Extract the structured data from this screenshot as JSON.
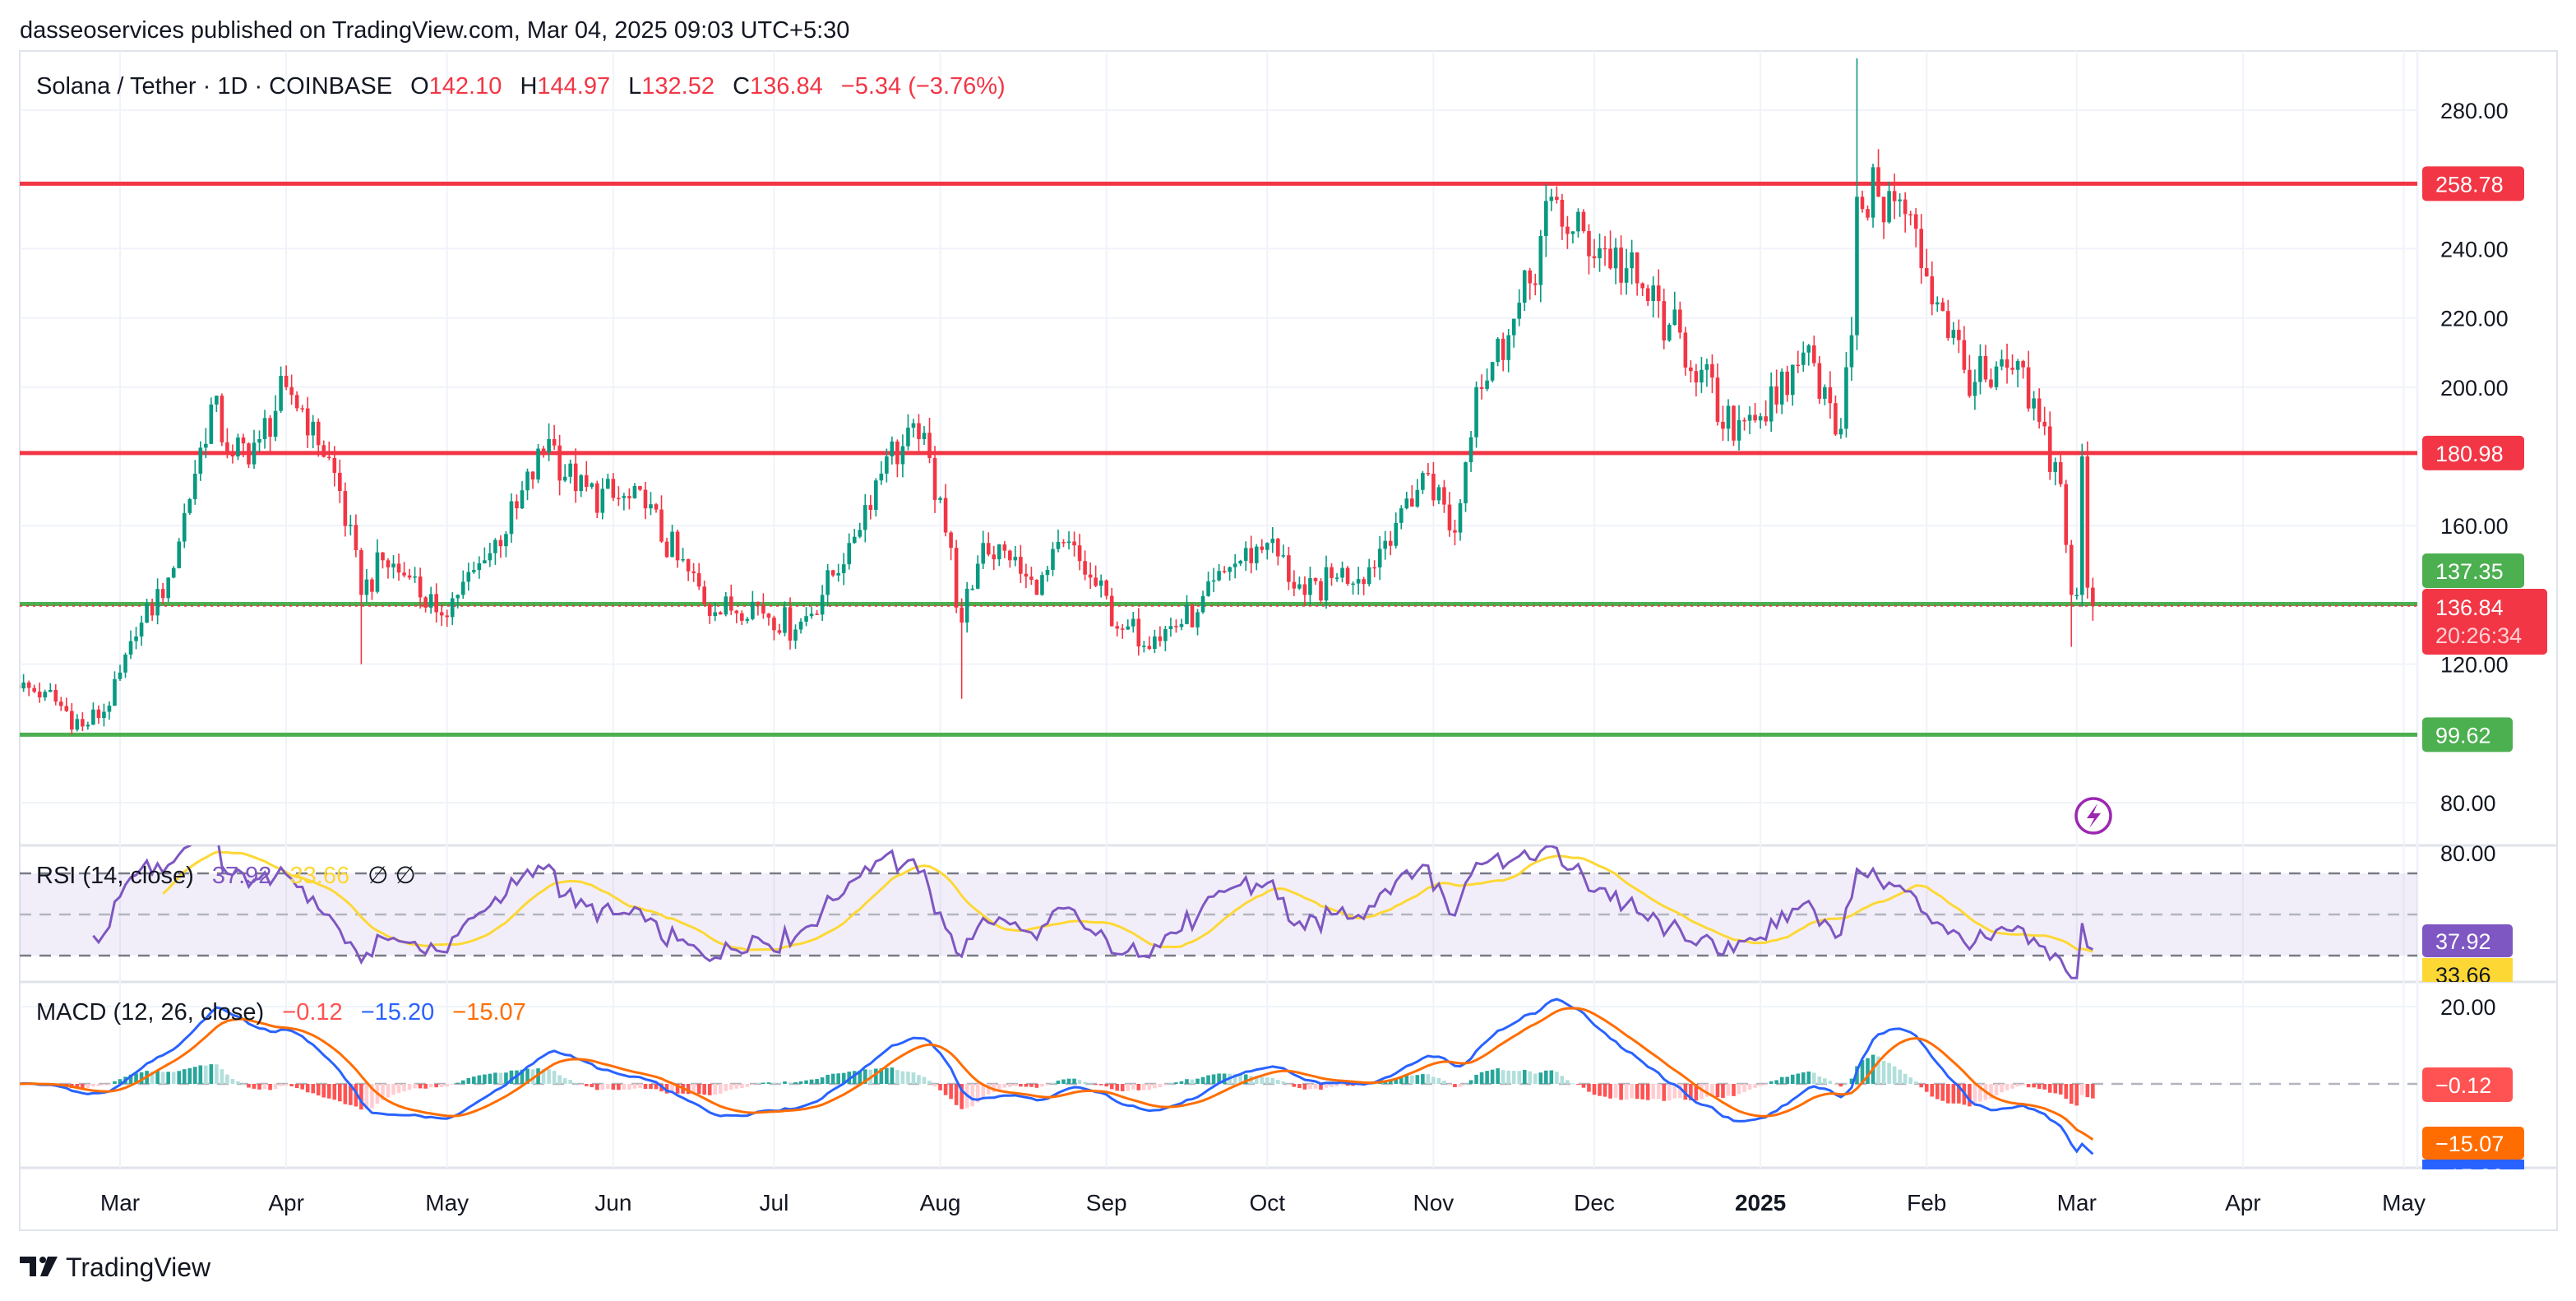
{
  "header": {
    "published": "dasseoservices published on TradingView.com, Mar 04, 2025 09:03 UTC+5:30"
  },
  "legend": {
    "symbol": "Solana / Tether · 1D · COINBASE",
    "o_label": "O",
    "o": "142.10",
    "h_label": "H",
    "h": "144.97",
    "l_label": "L",
    "l": "132.52",
    "c_label": "C",
    "c": "136.84",
    "change": "−5.34 (−3.76%)"
  },
  "rsi_legend": {
    "title": "RSI (14, close)",
    "rsi": "37.92",
    "ma": "33.66",
    "extra": "∅  ∅"
  },
  "macd_legend": {
    "title": "MACD (12, 26, close)",
    "hist": "−0.12",
    "macd": "−15.20",
    "signal": "−15.07"
  },
  "logo": {
    "text": "TradingView"
  },
  "colors": {
    "up": "#089981",
    "down": "#F23645",
    "support": "#4CAF50",
    "resistance": "#F23645",
    "rsi": "#7E57C2",
    "rsi_ma": "#FDD835",
    "macd": "#2962FF",
    "signal": "#FF6D00",
    "event": "#9C27B0"
  },
  "chart_data": [
    {
      "type": "candlestick",
      "title": "Solana / Tether · 1D · COINBASE",
      "x_start": "2024-02-11",
      "y_ticks": [
        "280.00",
        "240.00",
        "220.00",
        "200.00",
        "160.00",
        "120.00",
        "80.00"
      ],
      "y_tick_values": [
        280,
        240,
        220,
        200,
        160,
        120,
        80
      ],
      "ylim": [
        70,
        295
      ],
      "x_ticks": [
        {
          "label": "Mar",
          "day": 19
        },
        {
          "label": "Apr",
          "day": 50
        },
        {
          "label": "May",
          "day": 80
        },
        {
          "label": "Jun",
          "day": 111
        },
        {
          "label": "Jul",
          "day": 141
        },
        {
          "label": "Aug",
          "day": 172
        },
        {
          "label": "Sep",
          "day": 203
        },
        {
          "label": "Oct",
          "day": 233
        },
        {
          "label": "Nov",
          "day": 264
        },
        {
          "label": "Dec",
          "day": 294
        },
        {
          "label": "2025",
          "day": 325,
          "bold": true
        },
        {
          "label": "Feb",
          "day": 356
        },
        {
          "label": "Mar",
          "day": 384
        },
        {
          "label": "Apr",
          "day": 415
        },
        {
          "label": "May",
          "day": 445
        }
      ],
      "close_anchors_day_price": [
        [
          0,
          113
        ],
        [
          5,
          112
        ],
        [
          12,
          102
        ],
        [
          17,
          108
        ],
        [
          22,
          128
        ],
        [
          28,
          145
        ],
        [
          33,
          175
        ],
        [
          36,
          195
        ],
        [
          40,
          180
        ],
        [
          45,
          185
        ],
        [
          50,
          200
        ],
        [
          55,
          190
        ],
        [
          60,
          170
        ],
        [
          64,
          140
        ],
        [
          68,
          150
        ],
        [
          73,
          145
        ],
        [
          78,
          135
        ],
        [
          82,
          140
        ],
        [
          87,
          150
        ],
        [
          93,
          165
        ],
        [
          99,
          185
        ],
        [
          104,
          170
        ],
        [
          111,
          168
        ],
        [
          117,
          165
        ],
        [
          123,
          150
        ],
        [
          130,
          135
        ],
        [
          137,
          138
        ],
        [
          145,
          130
        ],
        [
          150,
          140
        ],
        [
          155,
          155
        ],
        [
          162,
          180
        ],
        [
          168,
          185
        ],
        [
          172,
          168
        ],
        [
          176,
          132
        ],
        [
          180,
          155
        ],
        [
          185,
          150
        ],
        [
          190,
          140
        ],
        [
          195,
          155
        ],
        [
          200,
          145
        ],
        [
          206,
          130
        ],
        [
          212,
          128
        ],
        [
          220,
          135
        ],
        [
          226,
          148
        ],
        [
          233,
          155
        ],
        [
          240,
          140
        ],
        [
          246,
          145
        ],
        [
          252,
          148
        ],
        [
          258,
          165
        ],
        [
          263,
          175
        ],
        [
          268,
          158
        ],
        [
          272,
          200
        ],
        [
          278,
          215
        ],
        [
          282,
          230
        ],
        [
          286,
          255
        ],
        [
          290,
          245
        ],
        [
          296,
          240
        ],
        [
          302,
          230
        ],
        [
          308,
          218
        ],
        [
          314,
          205
        ],
        [
          318,
          188
        ],
        [
          323,
          192
        ],
        [
          328,
          195
        ],
        [
          333,
          210
        ],
        [
          337,
          200
        ],
        [
          340,
          188
        ],
        [
          342,
          215
        ],
        [
          343,
          255
        ],
        [
          347,
          255
        ],
        [
          352,
          250
        ],
        [
          356,
          232
        ],
        [
          359,
          222
        ],
        [
          363,
          205
        ],
        [
          368,
          200
        ],
        [
          372,
          205
        ],
        [
          377,
          190
        ],
        [
          381,
          172
        ],
        [
          383,
          140
        ],
        [
          384,
          140
        ],
        [
          385,
          180
        ],
        [
          386,
          142.1
        ],
        [
          387,
          136.84
        ]
      ],
      "extreme_wicks": [
        [
          343,
          "high",
          295
        ],
        [
          176,
          "low",
          110
        ],
        [
          64,
          "low",
          120
        ],
        [
          383,
          "low",
          125
        ]
      ],
      "horizontal_levels": [
        {
          "value": 258.78,
          "label": "258.78",
          "kind": "resistance"
        },
        {
          "value": 180.98,
          "label": "180.98",
          "kind": "resistance"
        },
        {
          "value": 137.35,
          "label": "137.35",
          "kind": "support"
        },
        {
          "value": 99.62,
          "label": "99.62",
          "kind": "support"
        }
      ],
      "last_price": {
        "value": 136.84,
        "label": "136.84",
        "countdown": "20:26:34"
      }
    },
    {
      "type": "line",
      "title": "RSI (14, close)",
      "y_ticks": [
        "80.00"
      ],
      "bands": [
        70,
        50,
        30
      ],
      "last": {
        "rsi": "37.92",
        "ma": "33.66"
      }
    },
    {
      "type": "bar+line",
      "title": "MACD (12, 26, close)",
      "y_ticks": [
        "20.00"
      ],
      "last": {
        "hist": "−0.12",
        "signal": "−15.07",
        "macd": "−15.20"
      }
    }
  ]
}
